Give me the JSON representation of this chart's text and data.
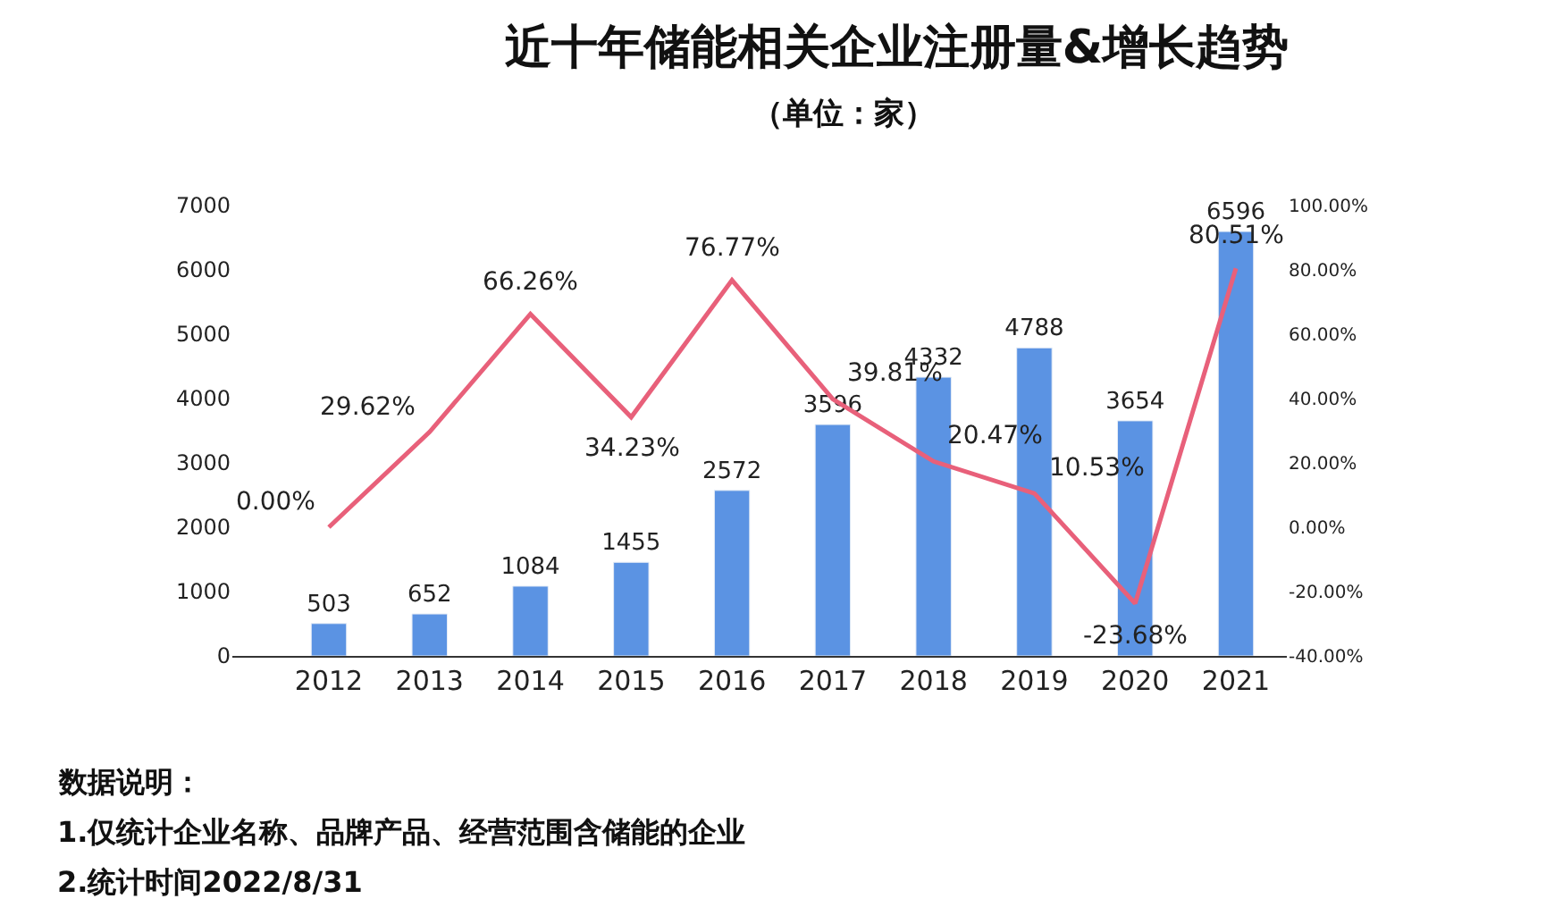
{
  "chart_data": {
    "type": "bar",
    "title": "近十年储能相关企业注册量&增长趋势",
    "subtitle": "（单位：家）",
    "categories": [
      "2012",
      "2013",
      "2014",
      "2015",
      "2016",
      "2017",
      "2018",
      "2019",
      "2020",
      "2021"
    ],
    "series": [
      {
        "type": "bar",
        "color": "#5b93e3",
        "values": [
          503,
          652,
          1084,
          1455,
          2572,
          3596,
          4332,
          4788,
          3654,
          6596
        ],
        "value_labels": [
          "503",
          "652",
          "1084",
          "1455",
          "2572",
          "3596",
          "4332",
          "4788",
          "3654",
          "6596"
        ]
      },
      {
        "type": "line",
        "axis": "y2",
        "color": "#e8607a",
        "values": [
          0.0,
          29.62,
          66.26,
          34.23,
          76.77,
          39.81,
          20.47,
          10.53,
          -23.68,
          80.51
        ],
        "value_labels": [
          "0.00%",
          "29.62%",
          "66.26%",
          "34.23%",
          "76.77%",
          "39.81%",
          "20.47%",
          "10.53%",
          "-23.68%",
          "80.51%"
        ]
      }
    ],
    "ylim": [
      0,
      7000
    ],
    "yticks": [
      0,
      1000,
      2000,
      3000,
      4000,
      5000,
      6000,
      7000
    ],
    "y2lim": [
      -40,
      100
    ],
    "y2ticks": [
      {
        "value": -40,
        "label": "-40.00%"
      },
      {
        "value": -20,
        "label": "-20.00%"
      },
      {
        "value": 0,
        "label": "0.00%"
      },
      {
        "value": 20,
        "label": "20.00%"
      },
      {
        "value": 40,
        "label": "40.00%"
      },
      {
        "value": 60,
        "label": "60.00%"
      },
      {
        "value": 80,
        "label": "80.00%"
      },
      {
        "value": 100,
        "label": "100.00%"
      }
    ],
    "marker": "none",
    "line_style": "solid",
    "annotations": [
      "数据说明：",
      "1.仅统计企业名称、品牌产品、经营范围含储能的企业",
      "2.统计时间2022/8/31"
    ]
  }
}
